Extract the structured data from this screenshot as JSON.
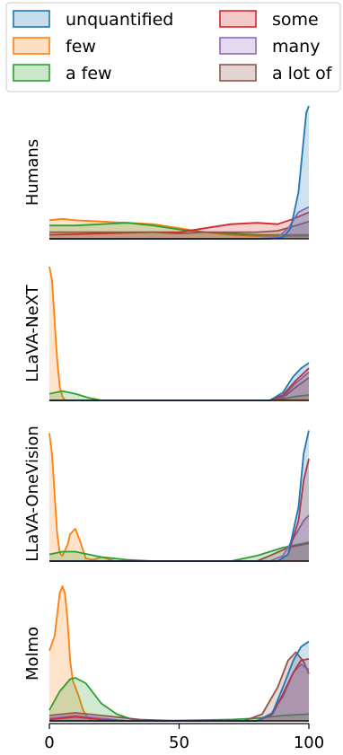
{
  "chart_data": {
    "type": "area",
    "description_kind": "kernel density ridgeline, one panel per model",
    "xlim": [
      0,
      100
    ],
    "x_ticks": [
      "0",
      "50",
      "100"
    ],
    "legend": {
      "placement": "top",
      "entries": [
        {
          "name": "unquantified",
          "color": "#1f77b4"
        },
        {
          "name": "few",
          "color": "#ff7f0e"
        },
        {
          "name": "a few",
          "color": "#2ca02c"
        },
        {
          "name": "some",
          "color": "#d62728"
        },
        {
          "name": "many",
          "color": "#9467bd"
        },
        {
          "name": "a lot of",
          "color": "#8c564b"
        }
      ]
    },
    "panels": [
      {
        "label": "Humans",
        "ymax": 1.0,
        "series": [
          {
            "name": "few",
            "color": "#ff7f0e",
            "points": [
              [
                0,
                0.14
              ],
              [
                5,
                0.15
              ],
              [
                10,
                0.14
              ],
              [
                20,
                0.13
              ],
              [
                30,
                0.12
              ],
              [
                40,
                0.11
              ],
              [
                50,
                0.08
              ],
              [
                60,
                0.05
              ],
              [
                70,
                0.03
              ],
              [
                80,
                0.02
              ],
              [
                90,
                0.02
              ],
              [
                95,
                0.02
              ],
              [
                100,
                0.02
              ]
            ]
          },
          {
            "name": "a few",
            "color": "#2ca02c",
            "points": [
              [
                0,
                0.1
              ],
              [
                10,
                0.1
              ],
              [
                20,
                0.11
              ],
              [
                30,
                0.12
              ],
              [
                40,
                0.1
              ],
              [
                50,
                0.07
              ],
              [
                60,
                0.05
              ],
              [
                70,
                0.04
              ],
              [
                80,
                0.03
              ],
              [
                90,
                0.03
              ],
              [
                100,
                0.03
              ]
            ]
          },
          {
            "name": "some",
            "color": "#d62728",
            "points": [
              [
                0,
                0.03
              ],
              [
                20,
                0.04
              ],
              [
                40,
                0.05
              ],
              [
                50,
                0.05
              ],
              [
                60,
                0.08
              ],
              [
                70,
                0.11
              ],
              [
                80,
                0.12
              ],
              [
                88,
                0.11
              ],
              [
                94,
                0.15
              ],
              [
                100,
                0.2
              ]
            ]
          },
          {
            "name": "a lot of",
            "color": "#8c564b",
            "points": [
              [
                0,
                0.05
              ],
              [
                20,
                0.05
              ],
              [
                40,
                0.05
              ],
              [
                50,
                0.04
              ],
              [
                60,
                0.05
              ],
              [
                70,
                0.05
              ],
              [
                80,
                0.05
              ],
              [
                88,
                0.06
              ],
              [
                95,
                0.1
              ],
              [
                100,
                0.13
              ]
            ]
          },
          {
            "name": "many",
            "color": "#9467bd",
            "points": [
              [
                0,
                0
              ],
              [
                80,
                0
              ],
              [
                88,
                0.01
              ],
              [
                92,
                0.08
              ],
              [
                96,
                0.2
              ],
              [
                100,
                0.24
              ]
            ]
          },
          {
            "name": "unquantified",
            "color": "#1f77b4",
            "points": [
              [
                0,
                0
              ],
              [
                85,
                0
              ],
              [
                90,
                0.01
              ],
              [
                93,
                0.08
              ],
              [
                96,
                0.35
              ],
              [
                98,
                0.75
              ],
              [
                99,
                0.95
              ],
              [
                100,
                1.0
              ]
            ]
          }
        ]
      },
      {
        "label": "LLaVA-NeXT",
        "ymax": 1.0,
        "series": [
          {
            "name": "few",
            "color": "#ff7f0e",
            "points": [
              [
                0,
                1.0
              ],
              [
                1,
                0.9
              ],
              [
                2,
                0.6
              ],
              [
                3,
                0.3
              ],
              [
                4,
                0.1
              ],
              [
                5,
                0.03
              ],
              [
                6,
                0
              ],
              [
                100,
                0
              ]
            ]
          },
          {
            "name": "a few",
            "color": "#2ca02c",
            "points": [
              [
                0,
                0.05
              ],
              [
                5,
                0.07
              ],
              [
                10,
                0.05
              ],
              [
                15,
                0.02
              ],
              [
                20,
                0
              ],
              [
                85,
                0
              ],
              [
                90,
                0.01
              ],
              [
                95,
                0.03
              ],
              [
                100,
                0.04
              ]
            ]
          },
          {
            "name": "a lot of",
            "color": "#8c564b",
            "points": [
              [
                0,
                0
              ],
              [
                85,
                0
              ],
              [
                90,
                0.02
              ],
              [
                95,
                0.1
              ],
              [
                100,
                0.17
              ]
            ]
          },
          {
            "name": "many",
            "color": "#9467bd",
            "points": [
              [
                0,
                0
              ],
              [
                85,
                0
              ],
              [
                90,
                0.03
              ],
              [
                95,
                0.13
              ],
              [
                100,
                0.21
              ]
            ]
          },
          {
            "name": "some",
            "color": "#d62728",
            "points": [
              [
                0,
                0
              ],
              [
                85,
                0
              ],
              [
                90,
                0.04
              ],
              [
                95,
                0.15
              ],
              [
                100,
                0.24
              ]
            ]
          },
          {
            "name": "unquantified",
            "color": "#1f77b4",
            "points": [
              [
                0,
                0
              ],
              [
                85,
                0
              ],
              [
                90,
                0.06
              ],
              [
                94,
                0.18
              ],
              [
                97,
                0.24
              ],
              [
                100,
                0.28
              ]
            ]
          }
        ]
      },
      {
        "label": "LLaVA-OneVision",
        "ymax": 1.0,
        "series": [
          {
            "name": "few",
            "color": "#ff7f0e",
            "points": [
              [
                0,
                0.95
              ],
              [
                1,
                0.8
              ],
              [
                2,
                0.5
              ],
              [
                3,
                0.2
              ],
              [
                4,
                0.06
              ],
              [
                5,
                0.04
              ],
              [
                7,
                0.12
              ],
              [
                8,
                0.2
              ],
              [
                10,
                0.24
              ],
              [
                12,
                0.14
              ],
              [
                14,
                0.02
              ],
              [
                17,
                0.01
              ],
              [
                20,
                0.03
              ],
              [
                22,
                0.02
              ],
              [
                25,
                0
              ],
              [
                100,
                0
              ]
            ]
          },
          {
            "name": "a few",
            "color": "#2ca02c",
            "points": [
              [
                0,
                0.05
              ],
              [
                5,
                0.07
              ],
              [
                10,
                0.07
              ],
              [
                15,
                0.05
              ],
              [
                20,
                0.03
              ],
              [
                30,
                0.01
              ],
              [
                40,
                0
              ],
              [
                70,
                0
              ],
              [
                80,
                0.04
              ],
              [
                90,
                0.1
              ],
              [
                100,
                0.14
              ]
            ]
          },
          {
            "name": "a lot of",
            "color": "#8c564b",
            "points": [
              [
                0,
                0
              ],
              [
                80,
                0
              ],
              [
                85,
                0.04
              ],
              [
                92,
                0.1
              ],
              [
                97,
                0.12
              ],
              [
                100,
                0.13
              ]
            ]
          },
          {
            "name": "many",
            "color": "#9467bd",
            "points": [
              [
                0,
                0
              ],
              [
                85,
                0
              ],
              [
                90,
                0.04
              ],
              [
                95,
                0.2
              ],
              [
                98,
                0.3
              ],
              [
                100,
                0.34
              ]
            ]
          },
          {
            "name": "some",
            "color": "#d62728",
            "points": [
              [
                0,
                0
              ],
              [
                88,
                0
              ],
              [
                92,
                0.05
              ],
              [
                96,
                0.3
              ],
              [
                98,
                0.6
              ],
              [
                100,
                0.76
              ]
            ]
          },
          {
            "name": "unquantified",
            "color": "#1f77b4",
            "points": [
              [
                0,
                0
              ],
              [
                88,
                0
              ],
              [
                92,
                0.05
              ],
              [
                96,
                0.4
              ],
              [
                98,
                0.8
              ],
              [
                100,
                0.97
              ]
            ]
          }
        ]
      },
      {
        "label": "Molmo",
        "ymax": 1.0,
        "series": [
          {
            "name": "few",
            "color": "#ff7f0e",
            "points": [
              [
                0,
                0.52
              ],
              [
                2,
                0.63
              ],
              [
                4,
                0.95
              ],
              [
                5,
                1.0
              ],
              [
                6,
                0.95
              ],
              [
                7,
                0.75
              ],
              [
                8,
                0.45
              ],
              [
                9,
                0.3
              ],
              [
                10,
                0.25
              ],
              [
                11,
                0.2
              ],
              [
                13,
                0.08
              ],
              [
                15,
                0.02
              ],
              [
                17,
                0
              ],
              [
                100,
                0
              ]
            ]
          },
          {
            "name": "a few",
            "color": "#2ca02c",
            "points": [
              [
                0,
                0.08
              ],
              [
                4,
                0.22
              ],
              [
                8,
                0.31
              ],
              [
                10,
                0.32
              ],
              [
                14,
                0.28
              ],
              [
                20,
                0.13
              ],
              [
                26,
                0.05
              ],
              [
                32,
                0.01
              ],
              [
                40,
                0
              ],
              [
                70,
                0.01
              ],
              [
                80,
                0.02
              ],
              [
                90,
                0.04
              ],
              [
                100,
                0.05
              ]
            ]
          },
          {
            "name": "a lot of",
            "color": "#8c564b",
            "points": [
              [
                0,
                0.04
              ],
              [
                10,
                0.06
              ],
              [
                15,
                0.05
              ],
              [
                25,
                0.03
              ],
              [
                35,
                0.01
              ],
              [
                50,
                0
              ],
              [
                75,
                0
              ],
              [
                82,
                0.05
              ],
              [
                88,
                0.25
              ],
              [
                92,
                0.45
              ],
              [
                95,
                0.51
              ],
              [
                98,
                0.44
              ],
              [
                100,
                0.35
              ]
            ]
          },
          {
            "name": "many",
            "color": "#9467bd",
            "points": [
              [
                0,
                0.02
              ],
              [
                10,
                0.04
              ],
              [
                20,
                0.02
              ],
              [
                30,
                0
              ],
              [
                80,
                0
              ],
              [
                85,
                0.04
              ],
              [
                90,
                0.18
              ],
              [
                94,
                0.36
              ],
              [
                97,
                0.42
              ],
              [
                100,
                0.38
              ]
            ]
          },
          {
            "name": "some",
            "color": "#d62728",
            "points": [
              [
                0,
                0.01
              ],
              [
                10,
                0.03
              ],
              [
                20,
                0.01
              ],
              [
                30,
                0
              ],
              [
                80,
                0
              ],
              [
                86,
                0.05
              ],
              [
                90,
                0.2
              ],
              [
                94,
                0.36
              ],
              [
                97,
                0.45
              ],
              [
                100,
                0.46
              ]
            ]
          },
          {
            "name": "unquantified",
            "color": "#1f77b4",
            "points": [
              [
                0,
                0
              ],
              [
                80,
                0
              ],
              [
                86,
                0.06
              ],
              [
                90,
                0.25
              ],
              [
                94,
                0.45
              ],
              [
                97,
                0.55
              ],
              [
                100,
                0.59
              ]
            ]
          }
        ]
      }
    ]
  }
}
